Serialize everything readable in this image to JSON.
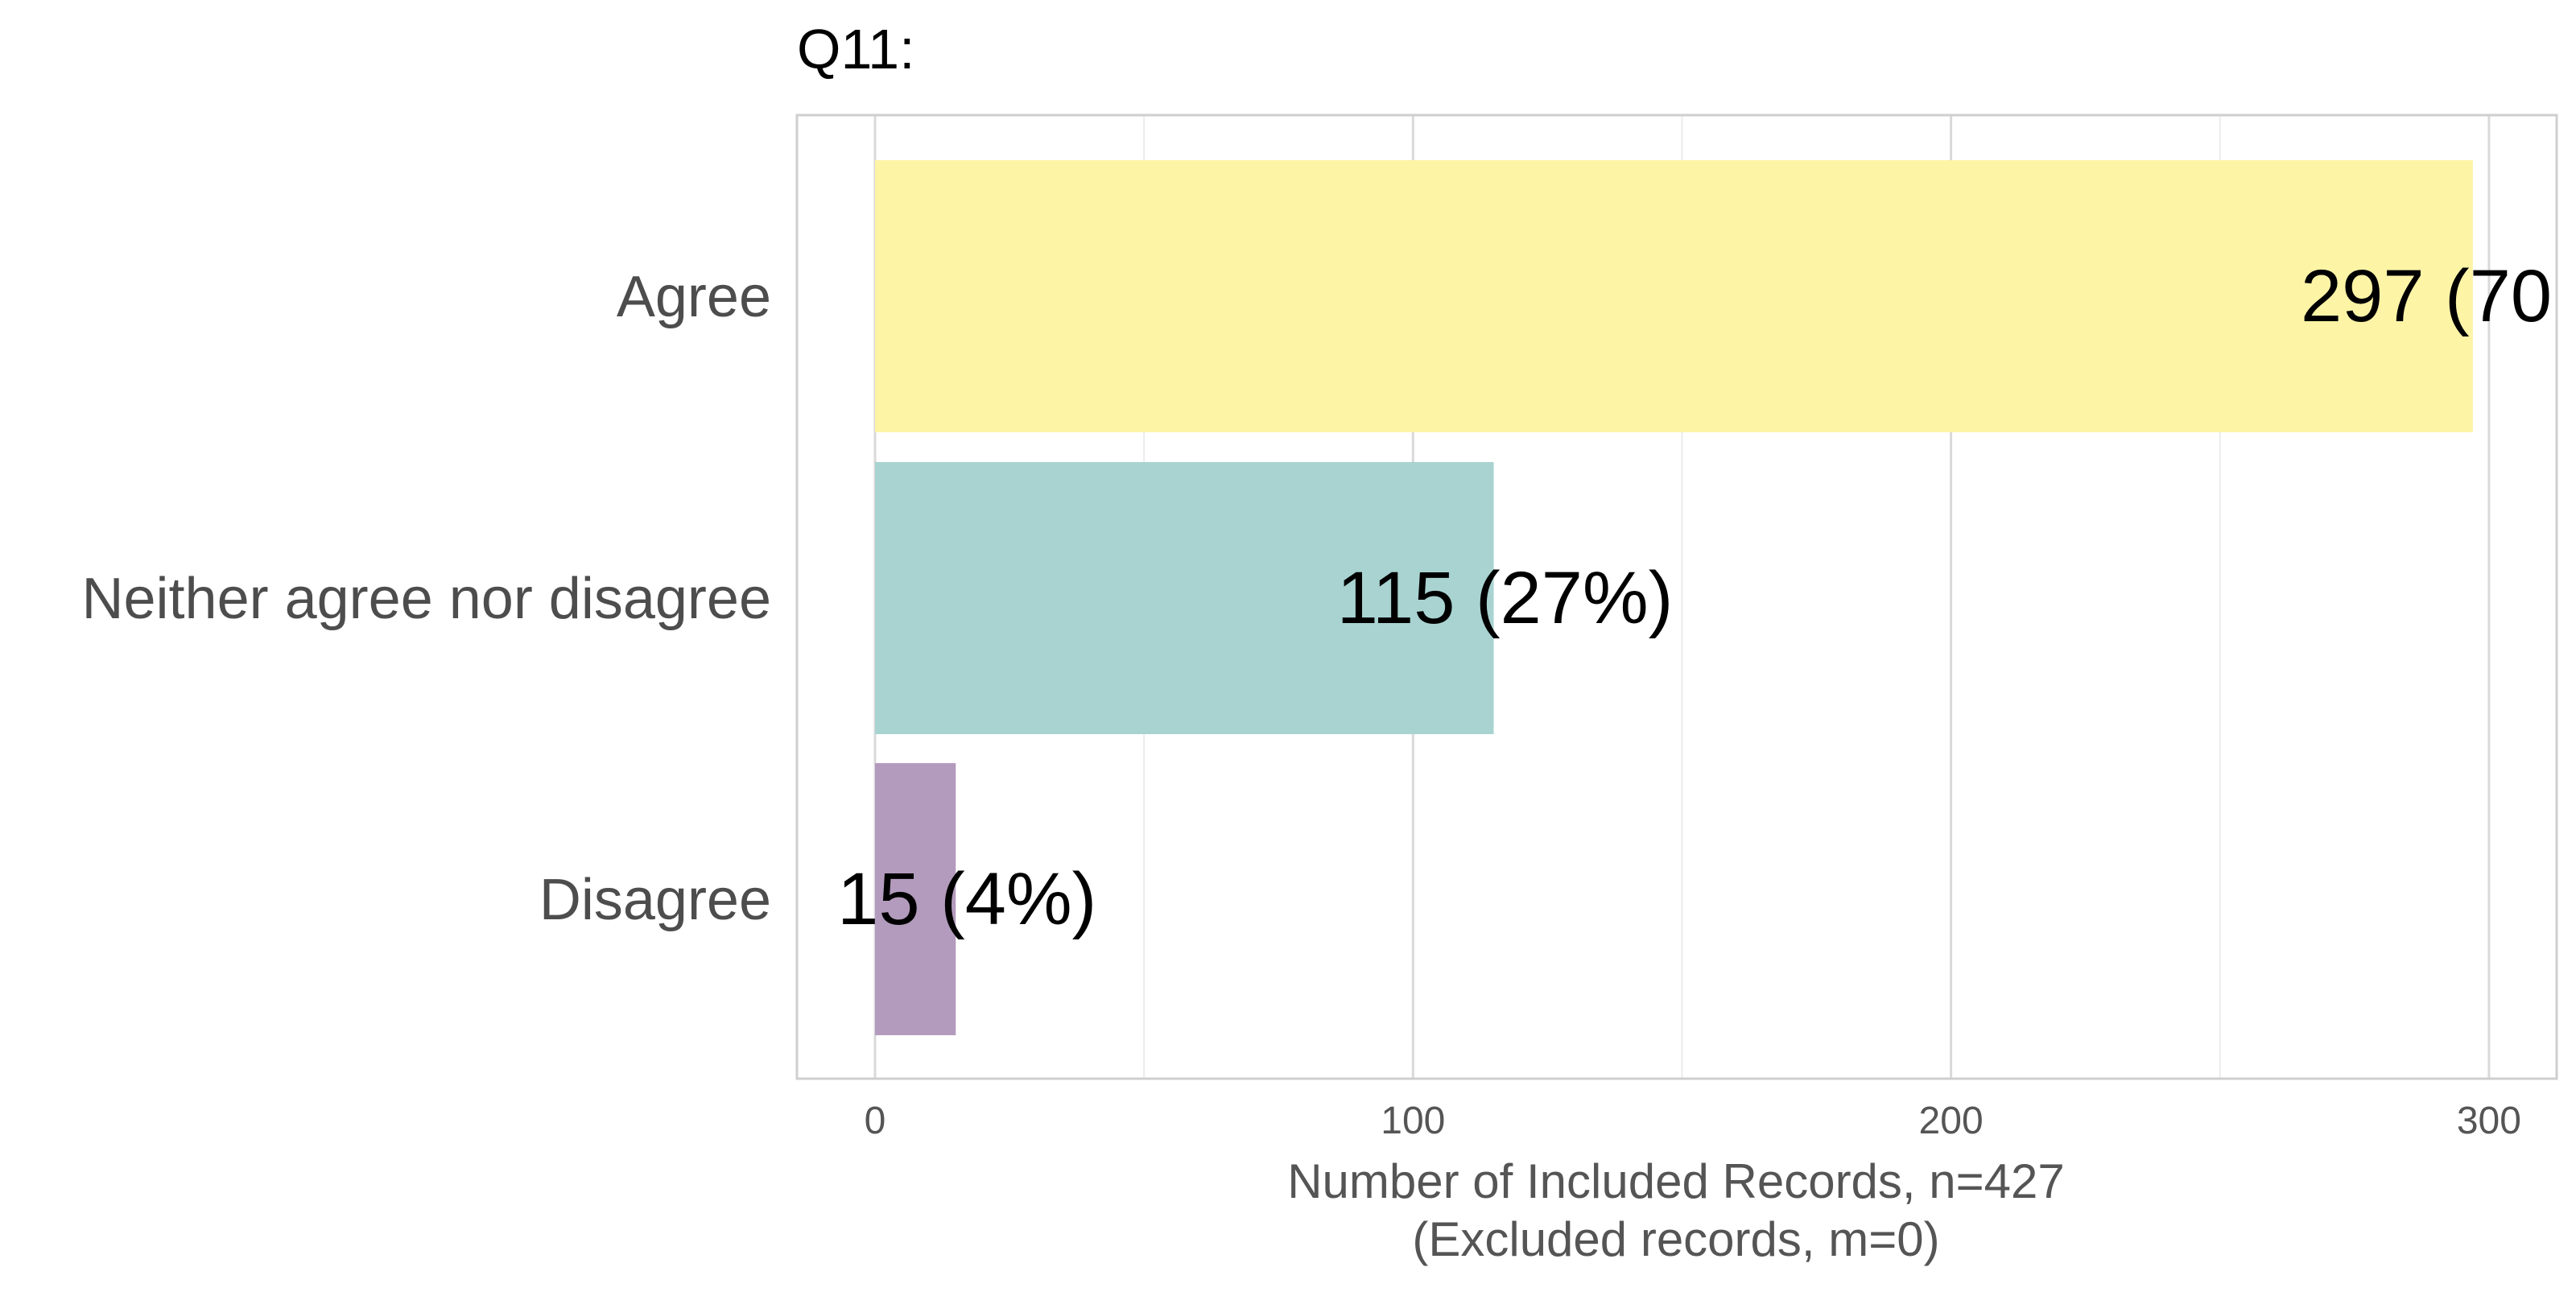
{
  "chart_data": {
    "type": "bar",
    "orientation": "horizontal",
    "title": "Q11:",
    "categories": [
      "Agree",
      "Neither agree nor disagree",
      "Disagree"
    ],
    "values": [
      297,
      115,
      15
    ],
    "data_labels": [
      "297 (70",
      "115 (27%)",
      "15 (4%)"
    ],
    "bar_colors": [
      "#fdf4a6",
      "#a8d3d1",
      "#b39bbd"
    ],
    "xlabel": "Number of Included Records, n=427",
    "xlabel_sub": "(Excluded records, m=0)",
    "ylabel": "",
    "xticks": [
      0,
      100,
      200,
      300
    ],
    "xlim": [
      -14.5,
      311
    ],
    "grid": true,
    "legend": "none"
  }
}
